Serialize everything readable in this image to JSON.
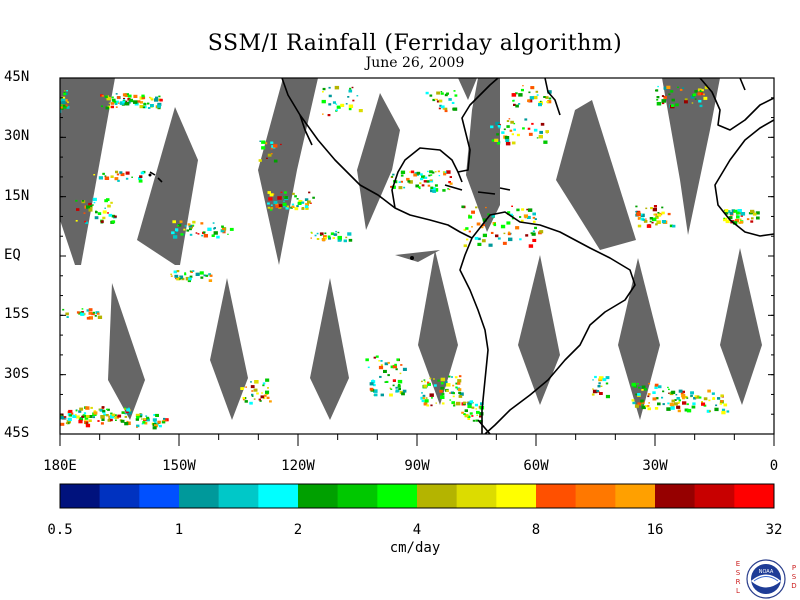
{
  "title": "SSM/I Rainfall (Ferriday algorithm)",
  "subtitle": "June 26, 2009",
  "lat_ticks": [
    {
      "label": "45N",
      "lat": 45
    },
    {
      "label": "30N",
      "lat": 30
    },
    {
      "label": "15N",
      "lat": 15
    },
    {
      "label": "EQ",
      "lat": 0
    },
    {
      "label": "15S",
      "lat": -15
    },
    {
      "label": "30S",
      "lat": -30
    },
    {
      "label": "45S",
      "lat": -45
    }
  ],
  "lon_ticks": [
    {
      "label": "180E",
      "lon": -180
    },
    {
      "label": "150W",
      "lon": -150
    },
    {
      "label": "120W",
      "lon": -120
    },
    {
      "label": "90W",
      "lon": -90
    },
    {
      "label": "60W",
      "lon": -60
    },
    {
      "label": "30W",
      "lon": -30
    },
    {
      "label": "0",
      "lon": 0
    }
  ],
  "colorbar": {
    "colors": [
      "#00127d",
      "#0032c0",
      "#0050ff",
      "#00999b",
      "#00c8c8",
      "#00ffff",
      "#00a000",
      "#00c800",
      "#00ff00",
      "#b4b400",
      "#dcdc00",
      "#ffff00",
      "#ff5000",
      "#ff7800",
      "#ffa000",
      "#960000",
      "#c80000",
      "#ff0000"
    ],
    "labels": [
      "0.5",
      "1",
      "2",
      "4",
      "8",
      "16",
      "32"
    ],
    "units": "cm/day"
  },
  "swath_color": "#666666",
  "logo": {
    "left_letters": [
      "E",
      "S",
      "R",
      "L"
    ],
    "right_letters": [
      "P",
      "S",
      "D"
    ],
    "text": "NOAA"
  }
}
